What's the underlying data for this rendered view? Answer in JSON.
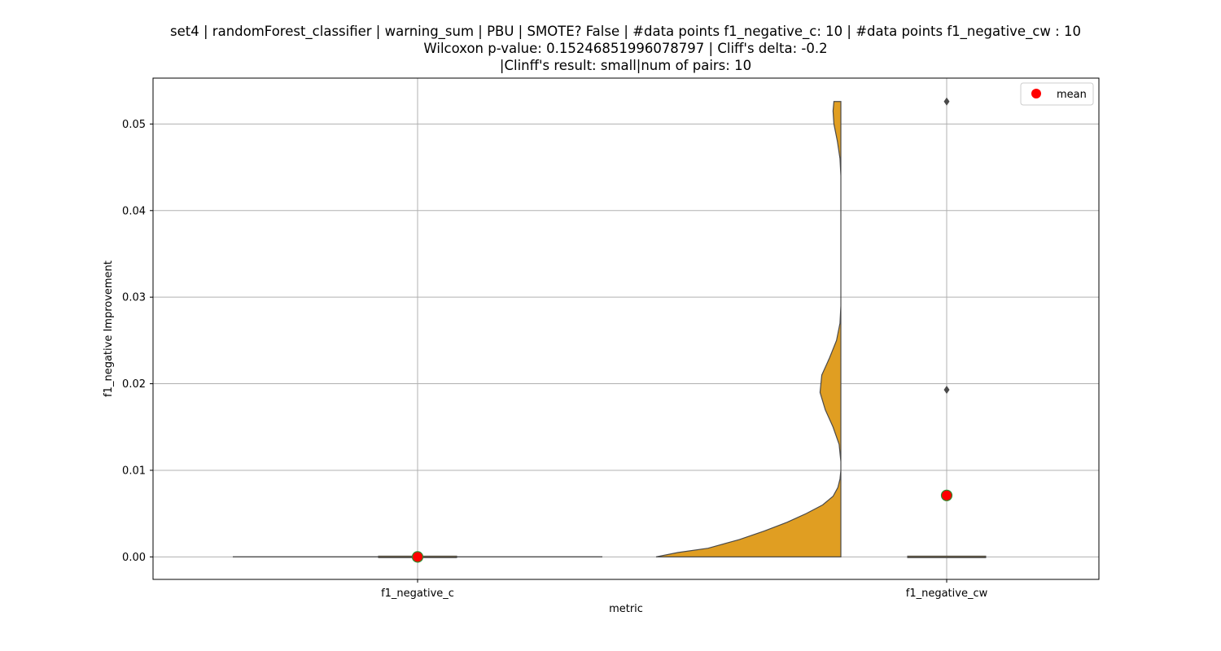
{
  "title_lines": [
    "set4 | randomForest_classifier | warning_sum | PBU | SMOTE? False | #data points f1_negative_c: 10 | #data points f1_negative_cw : 10",
    "Wilcoxon p-value: 0.15246851996078797 | Cliff's delta: -0.2",
    "|Clinff's result: small|num of pairs: 10"
  ],
  "chart_data": {
    "type": "violin",
    "xlabel": "metric",
    "ylabel": "f1_negative Improvement",
    "categories": [
      "f1_negative_c",
      "f1_negative_cw"
    ],
    "ylim": [
      -0.0026,
      0.0553
    ],
    "yticks": [
      "0.00",
      "0.01",
      "0.02",
      "0.03",
      "0.04",
      "0.05"
    ],
    "ytick_values": [
      0.0,
      0.01,
      0.02,
      0.03,
      0.04,
      0.05
    ],
    "grid": true,
    "legend": {
      "placement": "top-right",
      "entries": [
        {
          "label": "mean",
          "color": "#ff0000"
        }
      ]
    },
    "violin_color": "#e09e22",
    "mean_color": "#ff0000",
    "mean_edge_color": "#2e8b2e",
    "series": [
      {
        "category": "f1_negative_c",
        "mean": 0.0,
        "median": 0.0,
        "q1": 0.0,
        "q3": 0.0,
        "outliers": [],
        "density": []
      },
      {
        "category": "f1_negative_cw",
        "mean": 0.0071,
        "median": 0.0,
        "q1": 0.0,
        "q3": 0.0,
        "outliers": [
          0.0526,
          0.0193
        ],
        "density": [
          [
            0.0,
            2.13
          ],
          [
            0.0005,
            1.88
          ],
          [
            0.001,
            1.53
          ],
          [
            0.002,
            1.17
          ],
          [
            0.003,
            0.88
          ],
          [
            0.004,
            0.62
          ],
          [
            0.005,
            0.4
          ],
          [
            0.006,
            0.21
          ],
          [
            0.007,
            0.09
          ],
          [
            0.008,
            0.035
          ],
          [
            0.009,
            0.01
          ],
          [
            0.01,
            0.0
          ],
          [
            0.011,
            0.0
          ],
          [
            0.013,
            0.02
          ],
          [
            0.015,
            0.09
          ],
          [
            0.017,
            0.18
          ],
          [
            0.019,
            0.24
          ],
          [
            0.021,
            0.22
          ],
          [
            0.023,
            0.13
          ],
          [
            0.025,
            0.05
          ],
          [
            0.027,
            0.01
          ],
          [
            0.029,
            0.0
          ],
          [
            0.04,
            0.0
          ],
          [
            0.042,
            0.0
          ],
          [
            0.044,
            0.0
          ],
          [
            0.046,
            0.01
          ],
          [
            0.048,
            0.04
          ],
          [
            0.05,
            0.08
          ],
          [
            0.0515,
            0.09
          ],
          [
            0.0526,
            0.08
          ]
        ]
      }
    ]
  }
}
